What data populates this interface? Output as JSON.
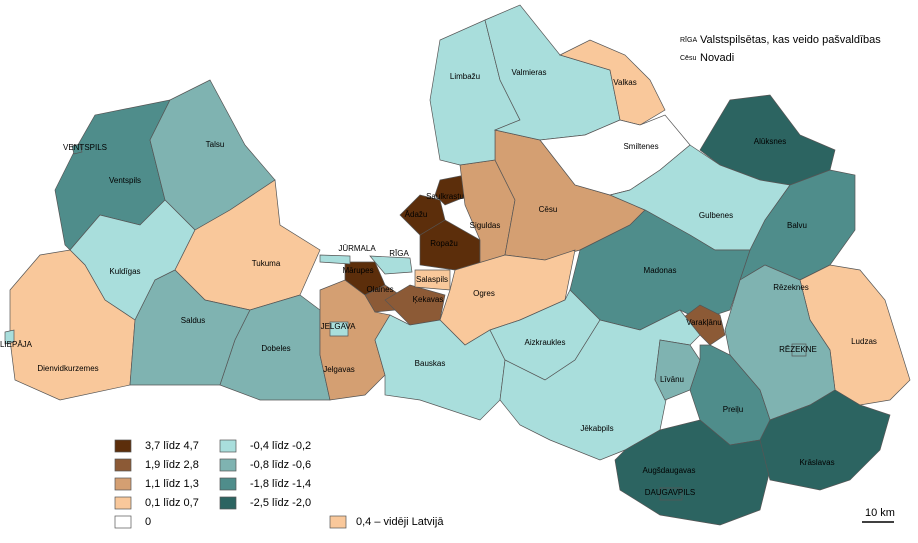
{
  "key": [
    {
      "abbr": "RĪGA",
      "text": "Valstspilsētas, kas veido pašvaldības"
    },
    {
      "abbr": "Cēsu",
      "text": "Novadi"
    }
  ],
  "legend": [
    {
      "label": "3,7 līdz 4,7",
      "color": "#5c2e0b"
    },
    {
      "label": "1,9 līdz 2,8",
      "color": "#8c5a36"
    },
    {
      "label": "1,1 līdz 1,3",
      "color": "#d49f72"
    },
    {
      "label": "0,1 līdz 0,7",
      "color": "#f9c89b"
    },
    {
      "label": "0",
      "color": "#ffffff"
    },
    {
      "label": "-0,4 līdz -0,2",
      "color": "#a9dedc"
    },
    {
      "label": "-0,8 līdz -0,6",
      "color": "#7fb3b1"
    },
    {
      "label": "-1,8 līdz -1,4",
      "color": "#4f8d8b"
    },
    {
      "label": "-2,5 līdz -2,0",
      "color": "#2c6461"
    }
  ],
  "average": {
    "label": "0,4 – vidēji Latvijā",
    "color": "#f9c89b"
  },
  "regions": [
    {
      "label": "Ventspils",
      "color": "#4f8d8b"
    },
    {
      "label": "Talsu",
      "color": "#7fb3b1"
    },
    {
      "label": "Kuldīgas",
      "color": "#a9dedc"
    },
    {
      "label": "Tukuma",
      "color": "#f9c89b"
    },
    {
      "label": "Dienvidkurzemes",
      "color": "#f9c89b"
    },
    {
      "label": "Saldus",
      "color": "#7fb3b1"
    },
    {
      "label": "Dobeles",
      "color": "#7fb3b1"
    },
    {
      "label": "Jelgavas",
      "color": "#d49f72"
    },
    {
      "label": "Mārupes",
      "color": "#5c2e0b"
    },
    {
      "label": "Olaines",
      "color": "#8c5a36"
    },
    {
      "label": "Ķekavas",
      "color": "#8c5a36"
    },
    {
      "label": "Salaspils",
      "color": "#f9c89b"
    },
    {
      "label": "Ropažu",
      "color": "#5c2e0b"
    },
    {
      "label": "Ādažu",
      "color": "#5c2e0b"
    },
    {
      "label": "Saulkrastu",
      "color": "#5c2e0b"
    },
    {
      "label": "Siguldas",
      "color": "#d49f72"
    },
    {
      "label": "Cēsu",
      "color": "#d49f72"
    },
    {
      "label": "Ogres",
      "color": "#f9c89b"
    },
    {
      "label": "Bauskas",
      "color": "#a9dedc"
    },
    {
      "label": "Limbažu",
      "color": "#a9dedc"
    },
    {
      "label": "Valmieras",
      "color": "#a9dedc"
    },
    {
      "label": "Valkas",
      "color": "#f9c89b"
    },
    {
      "label": "Smiltenes",
      "color": "#ffffff"
    },
    {
      "label": "Alūksnes",
      "color": "#2c6461"
    },
    {
      "label": "Gulbenes",
      "color": "#a9dedc"
    },
    {
      "label": "Balvu",
      "color": "#4f8d8b"
    },
    {
      "label": "Madonas",
      "color": "#4f8d8b"
    },
    {
      "label": "Ludzas",
      "color": "#f9c89b"
    },
    {
      "label": "Rēzeknes",
      "color": "#7fb3b1"
    },
    {
      "label": "Varakļānu",
      "color": "#8c5a36"
    },
    {
      "label": "Aizkraukles",
      "color": "#a9dedc"
    },
    {
      "label": "Jēkabpils",
      "color": "#a9dedc"
    },
    {
      "label": "Līvānu",
      "color": "#7fb3b1"
    },
    {
      "label": "Preiļu",
      "color": "#4f8d8b"
    },
    {
      "label": "Augšdaugavas",
      "color": "#2c6461"
    },
    {
      "label": "Krāslavas",
      "color": "#2c6461"
    },
    {
      "label": "VENTSPILS",
      "color": "#4f8d8b"
    },
    {
      "label": "LIEPĀJA",
      "color": "#a9dedc"
    },
    {
      "label": "JŪRMALA",
      "color": "#a9dedc"
    },
    {
      "label": "RĪGA",
      "color": "#a9dedc"
    },
    {
      "label": "JELGAVA",
      "color": "#a9dedc"
    },
    {
      "label": "RĒZEKNE",
      "color": "#7fb3b1"
    },
    {
      "label": "DAUGAVPILS",
      "color": "#2c6461"
    }
  ],
  "scale": "10 km"
}
